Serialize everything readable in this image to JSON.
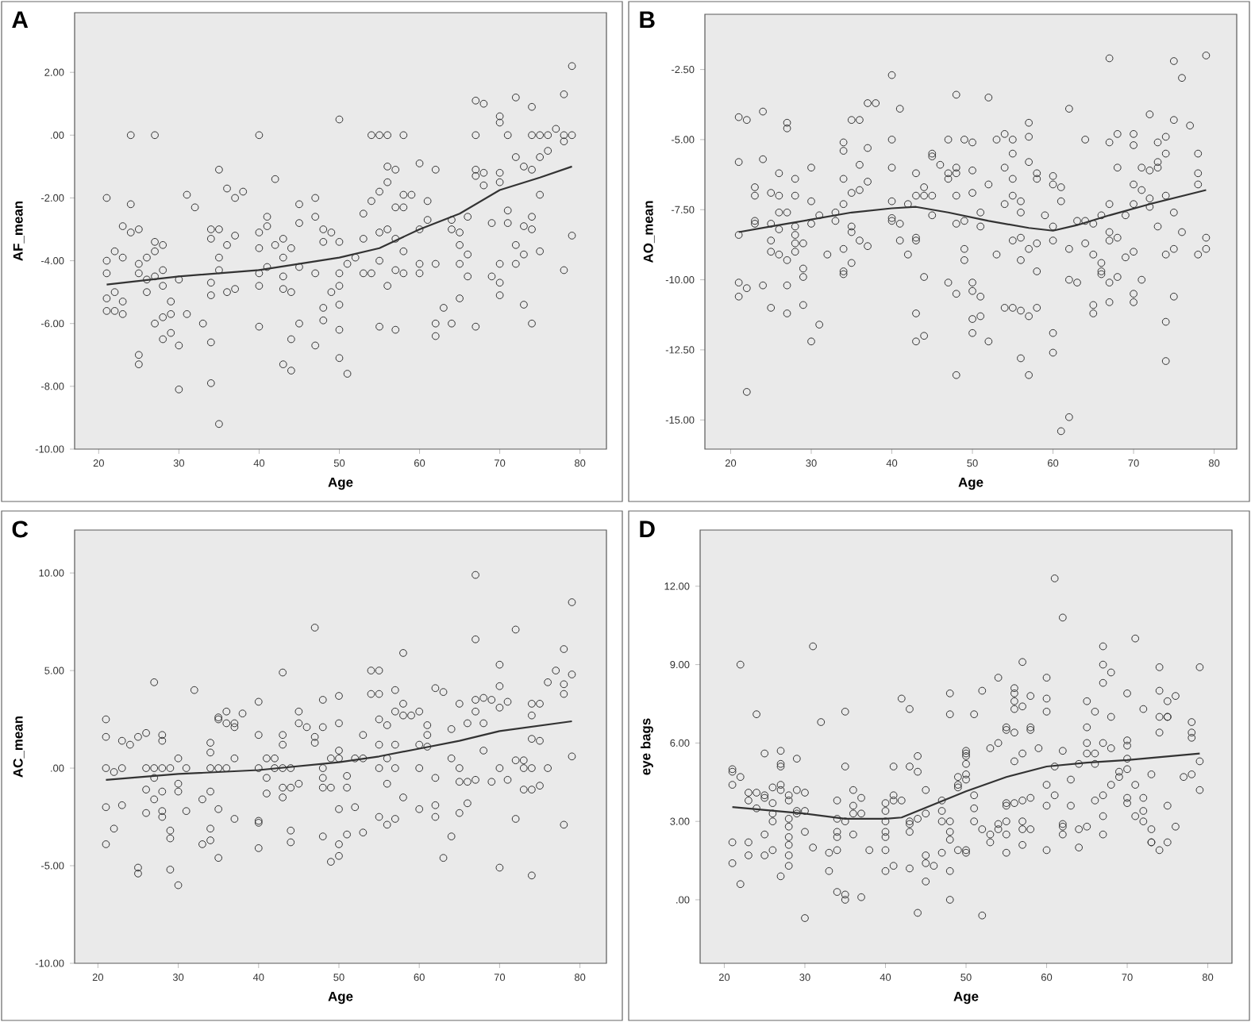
{
  "chart_data": [
    {
      "type": "scatter",
      "title": "A",
      "xlabel": "Age",
      "ylabel": "AF_mean",
      "xlim": [
        17,
        83.3
      ],
      "ylim": [
        -10,
        3.9
      ],
      "xticks": [
        20,
        30,
        40,
        50,
        60,
        70,
        80
      ],
      "yticks": [
        {
          "value": -10,
          "label": "-10.00"
        },
        {
          "value": -8,
          "label": "-8.00"
        },
        {
          "value": -6,
          "label": "-6.00"
        },
        {
          "value": -4,
          "label": "-4.00"
        },
        {
          "value": -2,
          "label": "-2.00"
        },
        {
          "value": 0,
          "label": ".00"
        },
        {
          "value": 2,
          "label": "2.00"
        }
      ],
      "series": [
        {
          "marker": "circle",
          "color": "#333333",
          "x": [
            21,
            21,
            21,
            21,
            21,
            22,
            22,
            22,
            23,
            23,
            23,
            23,
            24,
            24,
            24,
            25,
            25,
            25,
            25,
            25,
            26,
            26,
            26,
            27,
            27,
            27,
            27,
            27,
            28,
            28,
            28,
            28,
            28,
            29,
            29,
            29,
            30,
            30,
            30,
            31,
            31,
            32,
            33,
            34,
            34,
            34,
            34,
            34,
            34,
            35,
            35,
            35,
            35,
            35,
            36,
            36,
            36,
            37,
            37,
            37,
            38,
            40,
            40,
            40,
            40,
            40,
            40,
            41,
            41,
            41,
            42,
            42,
            43,
            43,
            43,
            43,
            43,
            44,
            44,
            44,
            44,
            45,
            45,
            45,
            45,
            47,
            47,
            47,
            47,
            48,
            48,
            48,
            48,
            49,
            49,
            50,
            50,
            50,
            50,
            50,
            50,
            50,
            51,
            51,
            52,
            53,
            53,
            53,
            54,
            54,
            54,
            55,
            55,
            55,
            55,
            55,
            56,
            56,
            56,
            56,
            56,
            57,
            57,
            57,
            57,
            57,
            58,
            58,
            58,
            58,
            58,
            59,
            60,
            60,
            60,
            60,
            61,
            61,
            62,
            62,
            62,
            62,
            63,
            64,
            64,
            64,
            65,
            65,
            65,
            65,
            66,
            66,
            66,
            67,
            67,
            67,
            67,
            67,
            68,
            68,
            68,
            69,
            69,
            70,
            70,
            70,
            70,
            70,
            70,
            70,
            71,
            71,
            71,
            72,
            72,
            72,
            72,
            73,
            73,
            73,
            73,
            74,
            74,
            74,
            74,
            74,
            74,
            75,
            75,
            75,
            75,
            76,
            76,
            77,
            78,
            78,
            78,
            78,
            79,
            79,
            79
          ],
          "values": [
            -2.0,
            -4.0,
            -4.4,
            -5.2,
            -5.6,
            -3.7,
            -5.0,
            -5.6,
            -2.9,
            -3.9,
            -5.3,
            -5.7,
            0,
            -2.2,
            -3.1,
            -3.0,
            -4.1,
            -4.4,
            -7.0,
            -7.3,
            -3.9,
            -4.6,
            -5.0,
            0,
            -3.4,
            -3.7,
            -4.5,
            -6.0,
            -3.5,
            -4.3,
            -4.8,
            -5.8,
            -6.5,
            -5.3,
            -5.7,
            -6.3,
            -4.6,
            -6.7,
            -8.1,
            -1.9,
            -5.7,
            -2.3,
            -6.0,
            -3.0,
            -3.3,
            -4.7,
            -5.1,
            -6.6,
            -7.9,
            -1.1,
            -3.0,
            -3.9,
            -4.3,
            -9.2,
            -1.7,
            -3.5,
            -5.0,
            -2.0,
            -3.2,
            -4.9,
            -1.8,
            0,
            -3.1,
            -3.6,
            -4.4,
            -4.8,
            -6.1,
            -2.6,
            -2.9,
            -4.2,
            -1.4,
            -3.5,
            -3.3,
            -3.9,
            -4.5,
            -4.9,
            -7.3,
            -3.6,
            -5.0,
            -6.5,
            -7.5,
            -2.2,
            -2.8,
            -4.2,
            -6.0,
            -2.0,
            -2.6,
            -4.4,
            -6.7,
            -3.0,
            -3.4,
            -5.5,
            -5.9,
            -3.1,
            -5.0,
            0.5,
            -3.4,
            -4.4,
            -4.8,
            -5.4,
            -6.2,
            -7.1,
            -4.1,
            -7.6,
            -3.9,
            -2.5,
            -3.3,
            -4.4,
            0,
            -2.1,
            -4.4,
            0,
            -1.8,
            -3.1,
            -4.0,
            -6.1,
            0,
            -1.0,
            -1.5,
            -3.0,
            -4.8,
            -1.1,
            -2.3,
            -3.3,
            -4.3,
            -6.2,
            0,
            -1.9,
            -2.3,
            -3.7,
            -4.4,
            -1.9,
            -0.9,
            -3.0,
            -4.1,
            -4.4,
            -2.1,
            -2.7,
            -1.1,
            -4.1,
            -6.0,
            -6.4,
            -5.5,
            -2.7,
            -3.0,
            -6.0,
            -3.1,
            -3.5,
            -4.1,
            -5.2,
            -2.6,
            -3.8,
            -4.5,
            1.1,
            0,
            -1.1,
            -1.3,
            -6.1,
            1.0,
            -1.2,
            -1.6,
            -2.8,
            -4.5,
            0.6,
            0.4,
            -1.2,
            -1.5,
            -4.1,
            -4.7,
            -5.1,
            0,
            -2.4,
            -2.8,
            1.2,
            -0.7,
            -3.5,
            -4.1,
            -1.0,
            -2.9,
            -3.8,
            -5.4,
            0.9,
            0,
            -1.1,
            -2.6,
            -3.0,
            -6.0,
            0,
            -0.7,
            -1.9,
            -3.7,
            0,
            -0.5,
            0.2,
            1.3,
            0,
            -0.2,
            -4.3,
            2.2,
            0,
            -3.2
          ]
        },
        {
          "type": "line",
          "marker": "none",
          "color": "#333333",
          "x": [
            21,
            30,
            40,
            50,
            55,
            60,
            65,
            70,
            75,
            79
          ],
          "values": [
            -4.76,
            -4.5,
            -4.3,
            -3.9,
            -3.6,
            -3.0,
            -2.5,
            -1.75,
            -1.35,
            -1.0
          ]
        }
      ]
    },
    {
      "type": "scatter",
      "title": "B",
      "xlabel": "Age",
      "ylabel": "AO_mean",
      "xlim": [
        16.8,
        82.8
      ],
      "ylim": [
        -16.04,
        -0.53
      ],
      "xticks": [
        20,
        30,
        40,
        50,
        60,
        70,
        80
      ],
      "yticks": [
        {
          "value": -15,
          "label": "-15.00"
        },
        {
          "value": -12.5,
          "label": "-12.50"
        },
        {
          "value": -10,
          "label": "-10.00"
        },
        {
          "value": -7.5,
          "label": "-7.50"
        },
        {
          "value": -5,
          "label": "-5.00"
        },
        {
          "value": -2.5,
          "label": "-2.50"
        }
      ],
      "series": [
        {
          "marker": "circle",
          "color": "#333333",
          "x": [
            21,
            21,
            21,
            21,
            21,
            22,
            22,
            22,
            23,
            23,
            23,
            23,
            24,
            24,
            24,
            25,
            25,
            25,
            25,
            25,
            26,
            26,
            26,
            26,
            26,
            27,
            27,
            27,
            27,
            27,
            27,
            28,
            28,
            28,
            28,
            28,
            28,
            29,
            29,
            29,
            29,
            30,
            30,
            30,
            30,
            31,
            31,
            32,
            33,
            33,
            34,
            34,
            34,
            34,
            34,
            34,
            34,
            35,
            35,
            35,
            35,
            35,
            36,
            36,
            36,
            36,
            37,
            37,
            37,
            37,
            38,
            40,
            40,
            40,
            40,
            40,
            40,
            41,
            41,
            41,
            42,
            42,
            43,
            43,
            43,
            43,
            43,
            43,
            44,
            44,
            44,
            44,
            45,
            45,
            45,
            45,
            46,
            47,
            47,
            47,
            47,
            48,
            48,
            48,
            48,
            48,
            48,
            48,
            49,
            49,
            49,
            49,
            50,
            50,
            50,
            50,
            50,
            50,
            50,
            51,
            51,
            51,
            51,
            52,
            52,
            52,
            53,
            53,
            54,
            54,
            54,
            54,
            55,
            55,
            55,
            55,
            55,
            55,
            56,
            56,
            56,
            56,
            56,
            56,
            57,
            57,
            57,
            57,
            57,
            57,
            58,
            58,
            58,
            58,
            58,
            59,
            60,
            60,
            60,
            60,
            60,
            60,
            61,
            61,
            61,
            62,
            62,
            62,
            62,
            63,
            63,
            64,
            64,
            64,
            65,
            65,
            65,
            65,
            66,
            66,
            66,
            66,
            67,
            67,
            67,
            67,
            67,
            67,
            67,
            68,
            68,
            68,
            68,
            69,
            69,
            70,
            70,
            70,
            70,
            70,
            70,
            70,
            71,
            71,
            71,
            72,
            72,
            72,
            72,
            73,
            73,
            73,
            73,
            74,
            74,
            74,
            74,
            74,
            74,
            75,
            75,
            75,
            75,
            75,
            76,
            76,
            77,
            78,
            78,
            78,
            78,
            79,
            79,
            79
          ],
          "values": [
            -4.2,
            -5.8,
            -8.4,
            -10.1,
            -10.6,
            -4.3,
            -10.3,
            -14.0,
            -6.7,
            -7.0,
            -7.9,
            -8.0,
            -4.0,
            -5.7,
            -10.2,
            -6.9,
            -8.0,
            -8.6,
            -9.0,
            -11.0,
            -6.2,
            -7.0,
            -7.6,
            -8.2,
            -9.1,
            -4.4,
            -4.6,
            -7.6,
            -9.3,
            -10.2,
            -11.2,
            -6.4,
            -7.0,
            -8.1,
            -8.4,
            -8.7,
            -9.0,
            -8.7,
            -9.6,
            -9.9,
            -10.9,
            -6.0,
            -7.2,
            -8.0,
            -12.2,
            -7.7,
            -11.6,
            -9.1,
            -7.6,
            -7.9,
            -5.1,
            -5.4,
            -6.4,
            -7.3,
            -8.9,
            -9.7,
            -9.8,
            -4.3,
            -6.9,
            -8.1,
            -8.3,
            -9.4,
            -4.3,
            -5.9,
            -6.8,
            -8.6,
            -3.7,
            -5.3,
            -6.5,
            -8.8,
            -3.7,
            -2.7,
            -5.0,
            -6.0,
            -7.2,
            -7.8,
            -7.9,
            -3.9,
            -8.0,
            -8.6,
            -7.3,
            -9.1,
            -6.2,
            -7.0,
            -8.5,
            -8.6,
            -11.2,
            -12.2,
            -6.7,
            -7.0,
            -9.9,
            -12.0,
            -5.5,
            -5.6,
            -7.0,
            -7.7,
            -5.9,
            -5.0,
            -6.2,
            -6.4,
            -10.1,
            -3.4,
            -6.0,
            -6.2,
            -7.0,
            -8.0,
            -10.5,
            -13.4,
            -5.0,
            -7.9,
            -8.9,
            -9.3,
            -5.1,
            -6.1,
            -6.9,
            -10.1,
            -10.4,
            -11.4,
            -11.9,
            -7.6,
            -8.1,
            -10.6,
            -11.3,
            -3.5,
            -6.6,
            -12.2,
            -5.0,
            -9.1,
            -4.8,
            -6.0,
            -7.3,
            -11.0,
            -5.0,
            -5.5,
            -6.4,
            -7.0,
            -8.6,
            -11.0,
            -7.2,
            -7.6,
            -8.5,
            -9.3,
            -11.1,
            -12.8,
            -4.4,
            -4.9,
            -5.8,
            -8.9,
            -11.3,
            -13.4,
            -6.2,
            -6.4,
            -8.7,
            -9.7,
            -11.0,
            -7.7,
            -6.3,
            -6.6,
            -8.1,
            -8.6,
            -11.9,
            -12.6,
            -6.7,
            -7.2,
            -15.4,
            -3.9,
            -8.9,
            -10.0,
            -14.9,
            -7.9,
            -10.1,
            -5.0,
            -7.9,
            -8.7,
            -8.0,
            -9.1,
            -10.9,
            -11.2,
            -7.7,
            -9.4,
            -9.7,
            -9.8,
            -2.1,
            -5.1,
            -7.3,
            -8.3,
            -8.6,
            -10.1,
            -10.8,
            -4.8,
            -6.0,
            -8.5,
            -9.9,
            -7.7,
            -9.2,
            -4.8,
            -5.2,
            -6.6,
            -7.3,
            -9.0,
            -10.5,
            -10.8,
            -6.0,
            -6.8,
            -10.0,
            -4.1,
            -6.1,
            -7.1,
            -7.4,
            -5.1,
            -5.8,
            -6.0,
            -8.1,
            -4.9,
            -5.5,
            -7.0,
            -9.1,
            -11.5,
            -12.9,
            -2.2,
            -4.3,
            -7.6,
            -8.9,
            -10.6,
            -2.8,
            -8.3,
            -4.5,
            -5.5,
            -6.2,
            -6.6,
            -9.1,
            -2.0,
            -8.5,
            -8.9
          ]
        },
        {
          "type": "line",
          "marker": "none",
          "color": "#333333",
          "x": [
            21,
            25,
            30,
            35,
            40,
            43,
            47,
            52,
            57,
            60,
            63,
            67,
            72,
            79
          ],
          "values": [
            -8.3,
            -8.1,
            -7.85,
            -7.6,
            -7.45,
            -7.4,
            -7.6,
            -7.9,
            -8.15,
            -8.25,
            -8.05,
            -7.7,
            -7.3,
            -6.8
          ]
        }
      ]
    },
    {
      "type": "scatter",
      "title": "C",
      "xlabel": "Age",
      "ylabel": "AC_mean",
      "xlim": [
        17.1,
        83.3
      ],
      "ylim": [
        -10,
        12.2
      ],
      "xticks": [
        20,
        30,
        40,
        50,
        60,
        70,
        80
      ],
      "yticks": [
        {
          "value": -10,
          "label": "-10.00"
        },
        {
          "value": -5,
          "label": "-5.00"
        },
        {
          "value": 0,
          "label": ".00"
        },
        {
          "value": 5,
          "label": "5.00"
        },
        {
          "value": 10,
          "label": "10.00"
        }
      ],
      "series": [
        {
          "marker": "circle",
          "color": "#333333",
          "x": [
            21,
            21,
            21,
            21,
            21,
            22,
            22,
            23,
            23,
            23,
            24,
            25,
            25,
            25,
            26,
            26,
            26,
            26,
            27,
            27,
            27,
            27,
            28,
            28,
            28,
            28,
            28,
            28,
            29,
            29,
            29,
            29,
            30,
            30,
            30,
            30,
            31,
            31,
            32,
            33,
            33,
            34,
            34,
            34,
            34,
            34,
            34,
            35,
            35,
            35,
            35,
            35,
            36,
            36,
            36,
            37,
            37,
            37,
            37,
            38,
            40,
            40,
            40,
            40,
            40,
            40,
            41,
            41,
            41,
            42,
            42,
            43,
            43,
            43,
            43,
            43,
            43,
            44,
            44,
            44,
            44,
            45,
            45,
            45,
            46,
            47,
            47,
            47,
            48,
            48,
            48,
            48,
            48,
            48,
            49,
            49,
            49,
            50,
            50,
            50,
            50,
            50,
            50,
            50,
            51,
            51,
            51,
            52,
            52,
            53,
            53,
            53,
            54,
            54,
            55,
            55,
            55,
            55,
            55,
            55,
            56,
            56,
            56,
            56,
            57,
            57,
            57,
            57,
            57,
            58,
            58,
            58,
            58,
            59,
            60,
            60,
            60,
            60,
            61,
            61,
            61,
            62,
            62,
            62,
            62,
            63,
            63,
            64,
            64,
            64,
            65,
            65,
            65,
            65,
            66,
            66,
            66,
            67,
            67,
            67,
            67,
            67,
            68,
            68,
            68,
            69,
            69,
            70,
            70,
            70,
            70,
            70,
            71,
            71,
            72,
            72,
            72,
            73,
            73,
            73,
            74,
            74,
            74,
            74,
            74,
            74,
            75,
            75,
            75,
            76,
            76,
            77,
            78,
            78,
            78,
            78,
            79,
            79,
            79
          ],
          "values": [
            2.5,
            1.6,
            0,
            -2.0,
            -3.9,
            -0.2,
            -3.1,
            1.4,
            0,
            -1.9,
            1.2,
            1.6,
            -5.1,
            -5.4,
            1.8,
            0,
            -1.1,
            -2.3,
            4.4,
            0,
            -0.5,
            -1.6,
            1.7,
            1.4,
            0,
            -1.2,
            -2.2,
            -2.5,
            0,
            -3.2,
            -3.6,
            -5.2,
            0.5,
            -0.8,
            -1.2,
            -6.0,
            0,
            -2.2,
            4.0,
            -1.6,
            -3.9,
            1.3,
            0.8,
            0,
            -1.2,
            -3.1,
            -3.7,
            2.6,
            2.5,
            0,
            -2.1,
            -4.6,
            2.9,
            2.3,
            0,
            2.3,
            2.1,
            0.5,
            -2.6,
            2.8,
            3.4,
            1.7,
            0,
            -2.7,
            -2.8,
            -4.1,
            0.5,
            -0.5,
            -1.3,
            0.5,
            0,
            4.9,
            1.7,
            1.2,
            0,
            -1.0,
            -1.5,
            0,
            -1.0,
            -3.2,
            -3.8,
            2.9,
            2.3,
            -0.8,
            2.1,
            7.2,
            1.6,
            1.3,
            3.5,
            2.1,
            0,
            -0.5,
            -1.0,
            -3.5,
            0.5,
            -1.0,
            -4.8,
            3.7,
            2.3,
            0.9,
            0.5,
            -2.1,
            -3.9,
            -4.5,
            -0.4,
            -1.0,
            -3.4,
            0.5,
            -2.0,
            1.7,
            0.5,
            -3.3,
            5.0,
            3.8,
            5.0,
            3.8,
            2.5,
            1.2,
            0,
            -2.5,
            2.2,
            0.5,
            -0.8,
            -2.9,
            4.0,
            2.9,
            1.2,
            0,
            -2.6,
            5.9,
            3.3,
            2.7,
            -1.5,
            2.7,
            2.9,
            1.2,
            0,
            -2.1,
            2.2,
            1.7,
            1.1,
            4.1,
            -0.5,
            -1.9,
            -2.5,
            3.9,
            -4.6,
            2.0,
            0.5,
            -3.5,
            3.3,
            0,
            -0.7,
            -2.3,
            2.3,
            -0.7,
            -1.8,
            9.9,
            6.6,
            3.5,
            2.9,
            -0.6,
            3.6,
            2.3,
            0.9,
            3.5,
            -0.7,
            5.3,
            4.2,
            3.1,
            0,
            -5.1,
            3.4,
            -0.6,
            7.1,
            0.4,
            -2.6,
            0.4,
            0,
            -1.1,
            3.3,
            2.7,
            1.5,
            0,
            -1.1,
            -5.5,
            3.3,
            1.4,
            -0.9,
            4.4,
            0,
            5.0,
            6.1,
            4.3,
            3.8,
            -2.9,
            8.5,
            4.8,
            0.6
          ]
        },
        {
          "type": "line",
          "marker": "none",
          "color": "#333333",
          "x": [
            21,
            30,
            40,
            50,
            55,
            60,
            65,
            70,
            79
          ],
          "values": [
            -0.6,
            -0.3,
            -0.1,
            0.3,
            0.6,
            1.0,
            1.4,
            1.9,
            2.4
          ]
        }
      ]
    },
    {
      "type": "scatter",
      "title": "D",
      "xlabel": "Age",
      "ylabel": "eye bags",
      "xlim": [
        17,
        83
      ],
      "ylim": [
        -2.43,
        14.15
      ],
      "xticks": [
        20,
        30,
        40,
        50,
        60,
        70,
        80
      ],
      "yticks": [
        {
          "value": 0,
          "label": ".00"
        },
        {
          "value": 3,
          "label": "3.00"
        },
        {
          "value": 6,
          "label": "6.00"
        },
        {
          "value": 9,
          "label": "9.00"
        },
        {
          "value": 12,
          "label": "12.00"
        }
      ],
      "series": [
        {
          "marker": "circle",
          "color": "#333333",
          "x": [
            21,
            21,
            21,
            21,
            21,
            22,
            22,
            22,
            23,
            23,
            23,
            23,
            24,
            24,
            24,
            25,
            25,
            25,
            25,
            25,
            26,
            26,
            26,
            26,
            26,
            27,
            27,
            27,
            27,
            27,
            27,
            28,
            28,
            28,
            28,
            28,
            28,
            28,
            28,
            29,
            29,
            29,
            29,
            30,
            30,
            30,
            30,
            31,
            31,
            32,
            33,
            33,
            34,
            34,
            34,
            34,
            34,
            34,
            35,
            35,
            35,
            35,
            35,
            36,
            36,
            36,
            36,
            37,
            37,
            37,
            38,
            40,
            40,
            40,
            40,
            40,
            40,
            40,
            41,
            41,
            41,
            41,
            42,
            42,
            43,
            43,
            43,
            43,
            43,
            43,
            44,
            44,
            44,
            44,
            45,
            45,
            45,
            45,
            45,
            46,
            47,
            47,
            47,
            47,
            48,
            48,
            48,
            48,
            48,
            48,
            48,
            49,
            49,
            49,
            49,
            50,
            50,
            50,
            50,
            50,
            50,
            50,
            50,
            51,
            51,
            51,
            51,
            52,
            52,
            52,
            53,
            53,
            53,
            54,
            54,
            54,
            54,
            55,
            55,
            55,
            55,
            55,
            55,
            55,
            56,
            56,
            56,
            56,
            56,
            56,
            56,
            57,
            57,
            57,
            57,
            57,
            57,
            57,
            58,
            58,
            58,
            58,
            58,
            59,
            60,
            60,
            60,
            60,
            60,
            60,
            61,
            61,
            61,
            62,
            62,
            62,
            62,
            62,
            63,
            63,
            64,
            64,
            64,
            65,
            65,
            65,
            65,
            65,
            66,
            66,
            66,
            66,
            67,
            67,
            67,
            67,
            67,
            67,
            67,
            68,
            68,
            68,
            68,
            69,
            69,
            70,
            70,
            70,
            70,
            70,
            70,
            70,
            71,
            71,
            71,
            72,
            72,
            72,
            72,
            73,
            73,
            73,
            73,
            74,
            74,
            74,
            74,
            74,
            75,
            75,
            75,
            75,
            75,
            76,
            76,
            77,
            78,
            78,
            78,
            78,
            79,
            79,
            79
          ],
          "values": [
            5.0,
            4.9,
            4.4,
            2.2,
            1.4,
            9.0,
            4.7,
            0.6,
            4.1,
            3.8,
            2.2,
            1.7,
            7.1,
            4.1,
            3.5,
            5.6,
            4.0,
            3.9,
            2.5,
            1.7,
            4.3,
            3.7,
            3.3,
            3.0,
            1.9,
            5.7,
            5.2,
            5.1,
            4.4,
            4.2,
            0.9,
            4.0,
            3.8,
            3.1,
            2.8,
            2.4,
            2.1,
            1.7,
            1.3,
            5.4,
            4.2,
            3.4,
            3.3,
            4.1,
            3.4,
            2.6,
            -0.7,
            9.7,
            2.0,
            6.8,
            1.8,
            1.1,
            3.8,
            3.1,
            2.6,
            2.4,
            1.9,
            0.3,
            7.2,
            5.1,
            3.0,
            0.2,
            0.0,
            4.2,
            3.6,
            3.3,
            2.5,
            3.9,
            3.3,
            0.1,
            1.9,
            3.7,
            3.4,
            3.0,
            2.6,
            2.4,
            1.9,
            1.1,
            5.1,
            4.0,
            3.8,
            1.3,
            7.7,
            3.8,
            7.3,
            5.1,
            3.0,
            2.9,
            2.6,
            1.2,
            5.5,
            4.9,
            3.1,
            -0.5,
            4.2,
            3.3,
            1.7,
            1.4,
            0.7,
            1.3,
            3.8,
            3.4,
            3.0,
            1.8,
            7.9,
            7.1,
            3.0,
            2.6,
            2.3,
            1.1,
            0.0,
            4.7,
            4.4,
            4.3,
            1.9,
            5.7,
            5.6,
            5.5,
            5.2,
            4.8,
            4.6,
            1.9,
            1.8,
            7.1,
            4.0,
            3.5,
            3.0,
            8.0,
            2.7,
            -0.6,
            5.8,
            2.5,
            2.2,
            8.5,
            6.0,
            2.9,
            2.7,
            6.6,
            6.5,
            3.7,
            3.6,
            3.0,
            2.5,
            1.8,
            8.1,
            7.9,
            7.6,
            7.3,
            6.4,
            5.3,
            3.7,
            9.1,
            7.4,
            5.6,
            3.8,
            3.0,
            2.7,
            2.1,
            7.8,
            6.6,
            6.5,
            3.9,
            2.7,
            5.8,
            8.5,
            7.7,
            7.2,
            4.4,
            3.6,
            1.9,
            12.3,
            5.1,
            4.0,
            10.8,
            5.7,
            2.9,
            2.8,
            2.5,
            4.6,
            3.6,
            5.2,
            2.7,
            2.0,
            7.6,
            6.6,
            6.0,
            5.6,
            2.8,
            7.2,
            5.6,
            5.2,
            3.8,
            9.7,
            9.0,
            8.3,
            6.0,
            4.0,
            3.2,
            2.5,
            8.7,
            7.0,
            5.8,
            4.4,
            4.9,
            4.7,
            7.9,
            6.1,
            5.9,
            5.4,
            5.0,
            3.9,
            3.7,
            10.0,
            4.4,
            3.2,
            7.3,
            3.9,
            3.4,
            3.0,
            4.8,
            2.7,
            2.2,
            2.2,
            8.9,
            8.0,
            7.0,
            6.4,
            1.9,
            7.6,
            7.0,
            7.0,
            3.6,
            2.2,
            7.8,
            2.8,
            4.7,
            6.8,
            6.4,
            6.2,
            4.8,
            8.9,
            5.3,
            4.2
          ]
        },
        {
          "type": "line",
          "marker": "none",
          "color": "#333333",
          "x": [
            21,
            30,
            35,
            40,
            42,
            50,
            55,
            60,
            65,
            70,
            79
          ],
          "values": [
            3.55,
            3.3,
            3.1,
            3.1,
            3.15,
            4.15,
            4.7,
            5.1,
            5.25,
            5.35,
            5.6
          ]
        }
      ]
    }
  ]
}
